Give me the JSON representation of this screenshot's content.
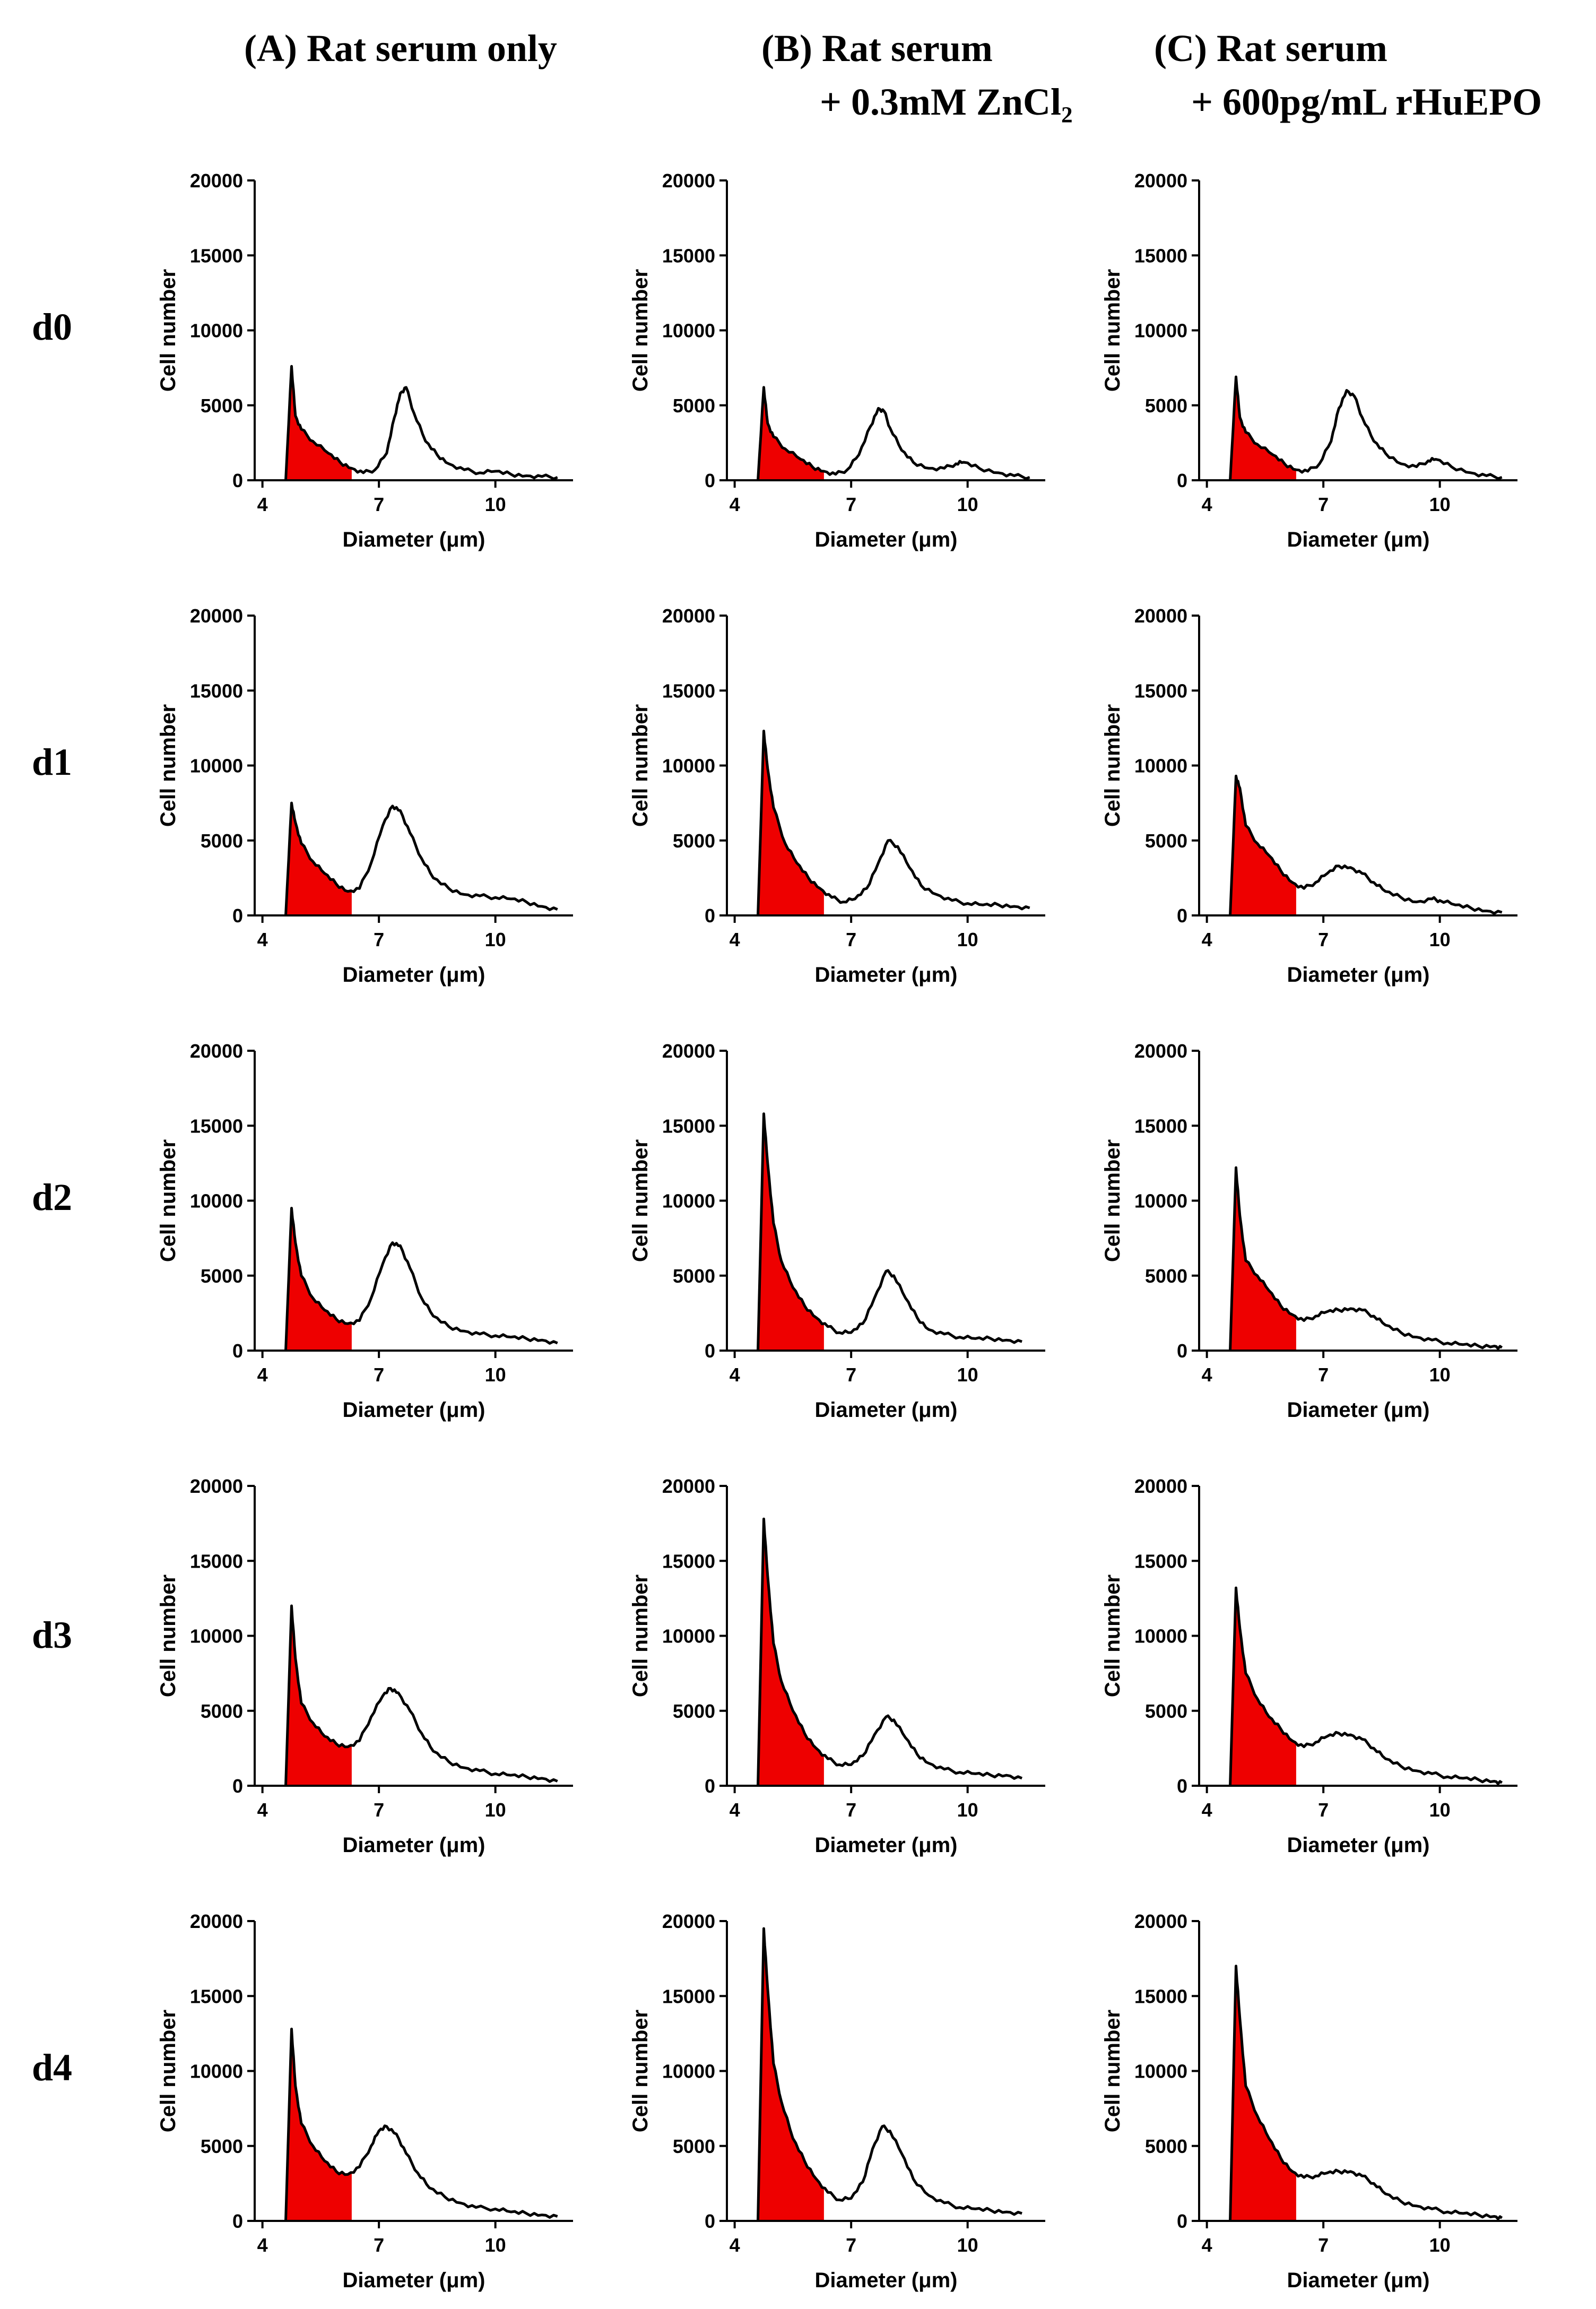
{
  "figure": {
    "column_titles": [
      {
        "line1": "(A) Rat serum only",
        "line2": ""
      },
      {
        "line1": "(B) Rat serum",
        "line2": "+ 0.3mM ZnCl₂"
      },
      {
        "line1": "(C) Rat serum",
        "line2": "+ 600pg/mL rHuEPO"
      }
    ],
    "row_labels": [
      "d0",
      "d1",
      "d2",
      "d3",
      "d4"
    ],
    "colors": {
      "fill": "#ee0000",
      "line": "#000000"
    }
  },
  "chart_data": {
    "type": "area",
    "layout": "5x3 grid of histograms",
    "xlabel": "Diameter (μm)",
    "ylabel": "Cell number",
    "xlim": [
      3.8,
      12.0
    ],
    "ylim": [
      0,
      20000
    ],
    "xticks": [
      4,
      7,
      10
    ],
    "xtick_labels": [
      "4",
      "7",
      "10"
    ],
    "yticks": [
      0,
      5000,
      10000,
      15000,
      20000
    ],
    "ytick_labels": [
      "0",
      "5000",
      "10000",
      "15000",
      "20000"
    ],
    "shaded_range_um": [
      4.6,
      6.3
    ],
    "panels": [
      {
        "row": "d0",
        "col": "A",
        "x": [
          4.6,
          4.75,
          4.85,
          5.0,
          5.3,
          5.7,
          6.0,
          6.3,
          6.6,
          6.9,
          7.2,
          7.4,
          7.55,
          7.7,
          7.9,
          8.2,
          8.5,
          8.8,
          9.2,
          9.6,
          10.0,
          10.4,
          10.8,
          11.2,
          11.6
        ],
        "y": [
          0,
          7600,
          4300,
          3400,
          2600,
          1800,
          1200,
          800,
          500,
          700,
          1800,
          4200,
          5800,
          6200,
          4500,
          2600,
          1700,
          1100,
          700,
          500,
          600,
          400,
          300,
          250,
          200
        ]
      },
      {
        "row": "d0",
        "col": "B",
        "x": [
          4.6,
          4.75,
          4.85,
          5.0,
          5.3,
          5.7,
          6.0,
          6.3,
          6.6,
          6.9,
          7.2,
          7.5,
          7.7,
          7.85,
          8.0,
          8.3,
          8.6,
          9.0,
          9.4,
          9.7,
          9.9,
          10.3,
          10.8,
          11.2,
          11.6
        ],
        "y": [
          0,
          6200,
          3800,
          2900,
          2100,
          1400,
          900,
          600,
          400,
          700,
          1700,
          3600,
          4800,
          4600,
          3500,
          2000,
          1200,
          800,
          800,
          1100,
          1200,
          800,
          500,
          300,
          200
        ]
      },
      {
        "row": "d0",
        "col": "C",
        "x": [
          4.6,
          4.75,
          4.85,
          5.0,
          5.3,
          5.7,
          6.0,
          6.3,
          6.6,
          6.9,
          7.2,
          7.4,
          7.6,
          7.8,
          8.0,
          8.3,
          8.6,
          9.0,
          9.4,
          9.7,
          9.9,
          10.3,
          10.8,
          11.2,
          11.6
        ],
        "y": [
          0,
          6900,
          4200,
          3200,
          2400,
          1700,
          1100,
          700,
          600,
          1100,
          2600,
          4800,
          6000,
          5600,
          4200,
          2600,
          1800,
          1100,
          900,
          1300,
          1400,
          900,
          500,
          300,
          200
        ]
      },
      {
        "row": "d1",
        "col": "A",
        "x": [
          4.6,
          4.75,
          4.85,
          5.0,
          5.3,
          5.6,
          5.9,
          6.2,
          6.5,
          6.8,
          7.1,
          7.35,
          7.55,
          7.8,
          8.1,
          8.4,
          8.8,
          9.2,
          9.6,
          10.0,
          10.4,
          10.8,
          11.2,
          11.6
        ],
        "y": [
          0,
          7500,
          6200,
          4800,
          3600,
          2800,
          2100,
          1600,
          1800,
          3500,
          6000,
          7300,
          7000,
          5500,
          3800,
          2500,
          1800,
          1400,
          1300,
          1200,
          1100,
          900,
          600,
          400
        ]
      },
      {
        "row": "d1",
        "col": "B",
        "x": [
          4.6,
          4.75,
          4.85,
          5.0,
          5.3,
          5.6,
          5.9,
          6.2,
          6.5,
          6.8,
          7.1,
          7.4,
          7.7,
          7.95,
          8.2,
          8.5,
          8.8,
          9.2,
          9.6,
          10.0,
          10.4,
          10.8,
          11.2,
          11.6
        ],
        "y": [
          0,
          12300,
          9800,
          7200,
          4800,
          3500,
          2500,
          1800,
          1200,
          900,
          1100,
          1800,
          3500,
          5000,
          4600,
          3200,
          2000,
          1400,
          1000,
          800,
          700,
          700,
          600,
          500
        ]
      },
      {
        "row": "d1",
        "col": "C",
        "x": [
          4.6,
          4.75,
          4.85,
          5.0,
          5.3,
          5.6,
          5.9,
          6.2,
          6.5,
          6.8,
          7.1,
          7.4,
          7.7,
          8.0,
          8.3,
          8.6,
          9.0,
          9.4,
          9.8,
          10.0,
          10.4,
          10.8,
          11.2,
          11.6
        ],
        "y": [
          0,
          9300,
          8500,
          6000,
          4800,
          4000,
          3000,
          2200,
          1800,
          2200,
          2800,
          3300,
          3200,
          2800,
          2200,
          1600,
          1200,
          900,
          1100,
          1000,
          700,
          500,
          300,
          200
        ]
      },
      {
        "row": "d2",
        "col": "A",
        "x": [
          4.6,
          4.75,
          4.85,
          5.0,
          5.3,
          5.6,
          5.9,
          6.2,
          6.5,
          6.8,
          7.1,
          7.35,
          7.55,
          7.8,
          8.1,
          8.4,
          8.8,
          9.2,
          9.6,
          10.0,
          10.4,
          10.8,
          11.2,
          11.6
        ],
        "y": [
          0,
          9500,
          7200,
          5000,
          3500,
          2700,
          2100,
          1800,
          2000,
          3500,
          5800,
          7200,
          7000,
          5500,
          3500,
          2300,
          1600,
          1300,
          1100,
          1000,
          900,
          800,
          700,
          500
        ]
      },
      {
        "row": "d2",
        "col": "B",
        "x": [
          4.6,
          4.75,
          4.85,
          5.0,
          5.2,
          5.5,
          5.8,
          6.1,
          6.4,
          6.7,
          7.0,
          7.3,
          7.6,
          7.9,
          8.1,
          8.4,
          8.7,
          9.0,
          9.4,
          9.8,
          10.2,
          10.6,
          11.0,
          11.4
        ],
        "y": [
          0,
          15800,
          12500,
          8500,
          6000,
          4200,
          3000,
          2200,
          1600,
          1200,
          1200,
          1800,
          3500,
          5300,
          5000,
          3500,
          2200,
          1400,
          1100,
          900,
          800,
          800,
          700,
          600
        ]
      },
      {
        "row": "d2",
        "col": "C",
        "x": [
          4.6,
          4.75,
          4.85,
          5.0,
          5.3,
          5.6,
          5.9,
          6.2,
          6.5,
          6.8,
          7.1,
          7.4,
          7.7,
          8.0,
          8.3,
          8.6,
          9.0,
          9.4,
          9.8,
          10.2,
          10.6,
          11.0,
          11.4,
          11.6
        ],
        "y": [
          0,
          12200,
          9000,
          6000,
          5000,
          4000,
          3000,
          2400,
          2000,
          2300,
          2600,
          2700,
          2800,
          2700,
          2300,
          1700,
          1200,
          900,
          700,
          500,
          400,
          300,
          300,
          200
        ]
      },
      {
        "row": "d3",
        "col": "A",
        "x": [
          4.6,
          4.75,
          4.85,
          5.0,
          5.3,
          5.6,
          5.9,
          6.2,
          6.5,
          6.8,
          7.1,
          7.3,
          7.5,
          7.8,
          8.1,
          8.4,
          8.8,
          9.2,
          9.6,
          10.0,
          10.4,
          10.8,
          11.2,
          11.6
        ],
        "y": [
          0,
          12000,
          8500,
          5500,
          4200,
          3300,
          2800,
          2600,
          3000,
          4600,
          6000,
          6500,
          6200,
          5000,
          3500,
          2300,
          1600,
          1200,
          1000,
          800,
          700,
          600,
          500,
          300
        ]
      },
      {
        "row": "d3",
        "col": "B",
        "x": [
          4.6,
          4.75,
          4.85,
          5.0,
          5.2,
          5.5,
          5.8,
          6.1,
          6.4,
          6.7,
          7.0,
          7.3,
          7.6,
          7.9,
          8.1,
          8.4,
          8.7,
          9.0,
          9.4,
          9.8,
          10.2,
          10.6,
          11.0,
          11.4
        ],
        "y": [
          0,
          17800,
          14000,
          9500,
          7000,
          5000,
          3500,
          2500,
          1800,
          1400,
          1400,
          2000,
          3400,
          4600,
          4400,
          3200,
          2100,
          1500,
          1100,
          900,
          800,
          700,
          700,
          500
        ]
      },
      {
        "row": "d3",
        "col": "C",
        "x": [
          4.6,
          4.75,
          4.85,
          5.0,
          5.3,
          5.6,
          5.9,
          6.2,
          6.5,
          6.8,
          7.1,
          7.4,
          7.7,
          8.0,
          8.3,
          8.6,
          9.0,
          9.4,
          9.8,
          10.2,
          10.6,
          11.0,
          11.4,
          11.6
        ],
        "y": [
          0,
          13200,
          10500,
          7500,
          5800,
          4600,
          3800,
          3000,
          2600,
          2900,
          3300,
          3500,
          3400,
          3100,
          2500,
          1800,
          1300,
          1000,
          800,
          600,
          500,
          400,
          300,
          200
        ]
      },
      {
        "row": "d4",
        "col": "A",
        "x": [
          4.6,
          4.75,
          4.85,
          5.0,
          5.3,
          5.6,
          5.9,
          6.2,
          6.5,
          6.8,
          7.0,
          7.2,
          7.45,
          7.7,
          8.0,
          8.3,
          8.7,
          9.1,
          9.5,
          10.0,
          10.4,
          10.8,
          11.2,
          11.6
        ],
        "y": [
          0,
          12800,
          9000,
          6500,
          5000,
          4000,
          3300,
          3100,
          3600,
          5000,
          6000,
          6300,
          5800,
          4500,
          3200,
          2200,
          1600,
          1200,
          900,
          800,
          600,
          500,
          400,
          300
        ]
      },
      {
        "row": "d4",
        "col": "B",
        "x": [
          4.6,
          4.75,
          4.85,
          5.0,
          5.2,
          5.5,
          5.8,
          6.1,
          6.4,
          6.7,
          7.0,
          7.3,
          7.55,
          7.8,
          8.0,
          8.3,
          8.6,
          9.0,
          9.4,
          9.8,
          10.2,
          10.6,
          11.0,
          11.4
        ],
        "y": [
          0,
          19500,
          15500,
          10500,
          8000,
          5500,
          4000,
          2800,
          1900,
          1400,
          1500,
          2600,
          4800,
          6300,
          6000,
          4500,
          2800,
          1700,
          1200,
          900,
          800,
          700,
          600,
          500
        ]
      },
      {
        "row": "d4",
        "col": "C",
        "x": [
          4.6,
          4.75,
          4.85,
          5.0,
          5.3,
          5.6,
          5.9,
          6.2,
          6.5,
          6.8,
          7.1,
          7.4,
          7.7,
          8.0,
          8.3,
          8.6,
          9.0,
          9.4,
          9.8,
          10.2,
          10.6,
          11.0,
          11.4,
          11.6
        ],
        "y": [
          0,
          17000,
          13500,
          9000,
          7000,
          5500,
          4200,
          3300,
          2900,
          3000,
          3200,
          3300,
          3300,
          3000,
          2500,
          1800,
          1300,
          1000,
          800,
          600,
          500,
          400,
          300,
          200
        ]
      }
    ]
  }
}
